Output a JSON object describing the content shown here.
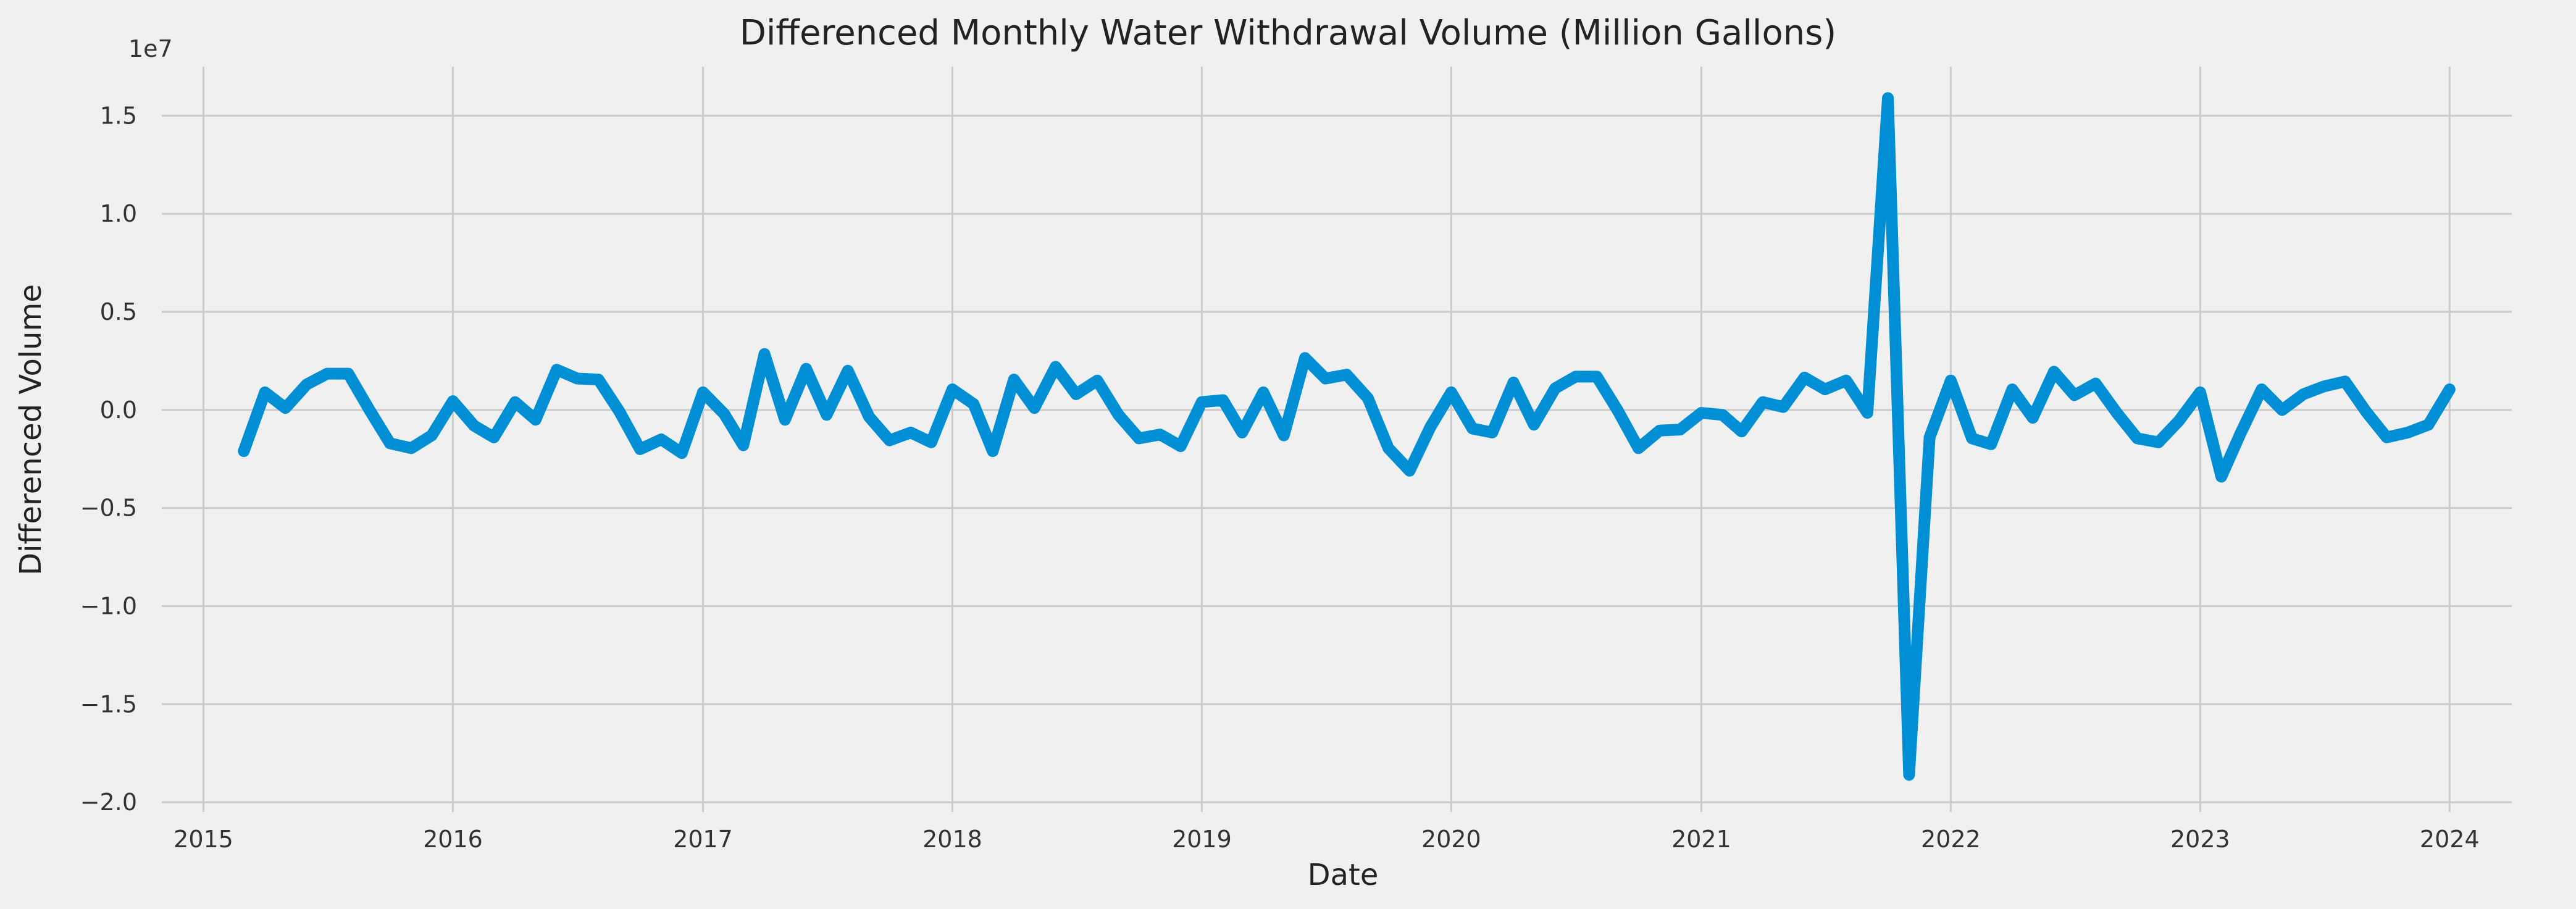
{
  "chart_data": {
    "type": "line",
    "title": "Differenced Monthly Water Withdrawal Volume (Million Gallons)",
    "xlabel": "Date",
    "ylabel": "Differenced Volume",
    "y_offset_label": "1e7",
    "xlim": [
      "2014-11-01",
      "2024-04-01"
    ],
    "ylim": [
      -20500000.0,
      17500000.0
    ],
    "x_ticks": [
      "2015-01-01",
      "2016-01-01",
      "2017-01-01",
      "2018-01-01",
      "2019-01-01",
      "2020-01-01",
      "2021-01-01",
      "2022-01-01",
      "2023-01-01",
      "2024-01-01"
    ],
    "x_tick_labels": [
      "2015",
      "2016",
      "2017",
      "2018",
      "2019",
      "2020",
      "2021",
      "2022",
      "2023",
      "2024"
    ],
    "y_ticks": [
      15000000.0,
      10000000.0,
      5000000.0,
      0,
      -5000000.0,
      -10000000.0,
      -15000000.0,
      -20000000.0
    ],
    "y_tick_labels": [
      "1.5",
      "1.0",
      "0.5",
      "0.0",
      "−0.5",
      "−1.0",
      "−1.5",
      "−2.0"
    ],
    "grid": true,
    "line_color": "#008fd5",
    "series": [
      {
        "x": [
          "2015-03-01",
          "2015-04-01",
          "2015-05-01",
          "2015-06-01",
          "2015-07-01",
          "2015-08-01",
          "2015-09-01",
          "2015-10-01",
          "2015-11-01",
          "2015-12-01",
          "2016-01-01",
          "2016-02-01",
          "2016-03-01",
          "2016-04-01",
          "2016-05-01",
          "2016-06-01",
          "2016-07-01",
          "2016-08-01",
          "2016-09-01",
          "2016-10-01",
          "2016-11-01",
          "2016-12-01",
          "2017-01-01",
          "2017-02-01",
          "2017-03-01",
          "2017-04-01",
          "2017-05-01",
          "2017-06-01",
          "2017-07-01",
          "2017-08-01",
          "2017-09-01",
          "2017-10-01",
          "2017-11-01",
          "2017-12-01",
          "2018-01-01",
          "2018-02-01",
          "2018-03-01",
          "2018-04-01",
          "2018-05-01",
          "2018-06-01",
          "2018-07-01",
          "2018-08-01",
          "2018-09-01",
          "2018-10-01",
          "2018-11-01",
          "2018-12-01",
          "2019-01-01",
          "2019-02-01",
          "2019-03-01",
          "2019-04-01",
          "2019-05-01",
          "2019-06-01",
          "2019-07-01",
          "2019-08-01",
          "2019-09-01",
          "2019-10-01",
          "2019-11-01",
          "2019-12-01",
          "2020-01-01",
          "2020-02-01",
          "2020-03-01",
          "2020-04-01",
          "2020-05-01",
          "2020-06-01",
          "2020-07-01",
          "2020-08-01",
          "2020-09-01",
          "2020-10-01",
          "2020-11-01",
          "2020-12-01",
          "2021-01-01",
          "2021-02-01",
          "2021-03-01",
          "2021-04-01",
          "2021-05-01",
          "2021-06-01",
          "2021-07-01",
          "2021-08-01",
          "2021-09-01",
          "2021-10-01",
          "2021-11-01",
          "2021-12-01",
          "2022-01-01",
          "2022-02-01",
          "2022-03-01",
          "2022-04-01",
          "2022-05-01",
          "2022-06-01",
          "2022-07-01",
          "2022-08-01",
          "2022-09-01",
          "2022-10-01",
          "2022-11-01",
          "2022-12-01",
          "2023-01-01",
          "2023-02-01",
          "2023-03-01",
          "2023-04-01",
          "2023-05-01",
          "2023-06-01",
          "2023-07-01",
          "2023-08-01",
          "2023-09-01",
          "2023-10-01",
          "2023-11-01",
          "2023-12-01",
          "2024-01-01"
        ],
        "values": [
          -2100000,
          900000,
          100000,
          1300000,
          1850000,
          1850000,
          0,
          -1700000,
          -1950000,
          -1300000,
          450000,
          -800000,
          -1400000,
          400000,
          -500000,
          2050000,
          1600000,
          1550000,
          -100000,
          -2000000,
          -1500000,
          -2200000,
          900000,
          -200000,
          -1800000,
          2850000,
          -500000,
          2100000,
          -250000,
          2000000,
          -350000,
          -1550000,
          -1150000,
          -1650000,
          1050000,
          300000,
          -2100000,
          1550000,
          100000,
          2200000,
          800000,
          1500000,
          -250000,
          -1450000,
          -1250000,
          -1850000,
          400000,
          500000,
          -1150000,
          900000,
          -1300000,
          2650000,
          1600000,
          1800000,
          600000,
          -1950000,
          -3100000,
          -900000,
          900000,
          -950000,
          -1150000,
          1400000,
          -750000,
          1100000,
          1700000,
          1700000,
          -50000,
          -1950000,
          -1050000,
          -1000000,
          -150000,
          -250000,
          -1100000,
          400000,
          150000,
          1650000,
          1050000,
          1500000,
          -150000,
          15900000,
          -18600000,
          -1400000,
          1500000,
          -1450000,
          -1750000,
          1050000,
          -400000,
          1950000,
          750000,
          1350000,
          -150000,
          -1450000,
          -1650000,
          -550000,
          900000,
          -3400000,
          -1200000,
          1050000,
          0,
          800000,
          1200000,
          1450000,
          -100000,
          -1400000,
          -1150000,
          -750000,
          1050000
        ]
      }
    ]
  }
}
